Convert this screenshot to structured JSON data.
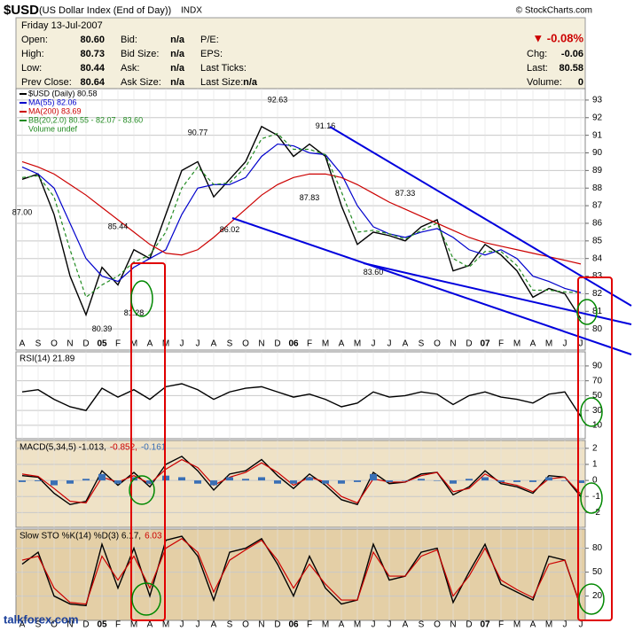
{
  "header": {
    "symbol": "$USD",
    "name": "(US Dollar Index (End of Day))",
    "exchange": "INDX",
    "source": "© StockCharts.com",
    "date": "Friday 13-Jul-2007",
    "quote": [
      [
        {
          "label": "Open:",
          "value": "80.60"
        },
        {
          "label": "Bid:",
          "value": "n/a"
        },
        {
          "label": "P/E:"
        }
      ],
      [
        {
          "label": "High:",
          "value": "80.73"
        },
        {
          "label": "Bid Size:",
          "value": "n/a"
        },
        {
          "label": "EPS:"
        }
      ],
      [
        {
          "label": "Low:",
          "value": "80.44"
        },
        {
          "label": "Ask:",
          "value": "n/a"
        },
        {
          "label": "Last Ticks:"
        }
      ],
      [
        {
          "label": "Prev Close:",
          "value": "80.64"
        },
        {
          "label": "Ask Size:",
          "value": "n/a"
        },
        {
          "label": "Last Size:",
          "value": "n/a"
        }
      ]
    ],
    "change_pct": "▼ -0.08%",
    "summary": [
      {
        "label": "Chg:",
        "value": "-0.06"
      },
      {
        "label": "Last:",
        "value": "80.58"
      },
      {
        "label": "Volume:",
        "value": "0"
      }
    ]
  },
  "watermark": "talkforex.com",
  "chart_data": [
    {
      "type": "line",
      "categories": [
        "A",
        "S",
        "O",
        "N",
        "D",
        "05",
        "F",
        "M",
        "A",
        "M",
        "J",
        "J",
        "A",
        "S",
        "O",
        "N",
        "D",
        "06",
        "F",
        "M",
        "A",
        "M",
        "J",
        "J",
        "A",
        "S",
        "O",
        "N",
        "D",
        "07",
        "F",
        "M",
        "A",
        "M",
        "J",
        "J"
      ],
      "ylim": [
        78.8,
        93.65
      ],
      "yticks": [
        80,
        81,
        82,
        83,
        84,
        85,
        86,
        87,
        88,
        89,
        90,
        91,
        92,
        93
      ],
      "grid": true,
      "legend_extra": "Volume undef",
      "series": [
        {
          "name": "$USD (Daily) 80.58",
          "color": "#000000",
          "values": [
            88.5,
            88.8,
            86.5,
            83.0,
            80.8,
            83.5,
            82.5,
            84.5,
            84.0,
            86.5,
            89.0,
            89.5,
            87.5,
            88.5,
            89.5,
            91.5,
            91.0,
            89.8,
            90.5,
            89.8,
            87.0,
            84.8,
            85.5,
            85.3,
            85.0,
            85.8,
            86.2,
            83.3,
            83.6,
            84.8,
            84.2,
            83.3,
            81.8,
            82.3,
            82.0,
            80.58
          ]
        },
        {
          "name": "MA(55) 82.06",
          "color": "#0000cc",
          "values": [
            89.2,
            88.8,
            88.0,
            86.0,
            84.0,
            83.0,
            82.7,
            83.5,
            84.0,
            84.5,
            86.5,
            88.0,
            88.2,
            88.2,
            88.6,
            89.8,
            90.5,
            90.4,
            90.0,
            89.9,
            88.8,
            87.0,
            85.8,
            85.4,
            85.2,
            85.5,
            85.7,
            85.2,
            84.5,
            84.2,
            84.5,
            84.0,
            83.0,
            82.7,
            82.3,
            82.06
          ]
        },
        {
          "name": "MA(200) 83.69",
          "color": "#cc0000",
          "values": [
            89.5,
            89.2,
            88.8,
            88.2,
            87.6,
            86.9,
            86.2,
            85.5,
            84.8,
            84.3,
            84.2,
            84.5,
            85.2,
            86.0,
            86.8,
            87.6,
            88.2,
            88.6,
            88.8,
            88.8,
            88.6,
            88.2,
            87.7,
            87.2,
            86.8,
            86.4,
            86.0,
            85.6,
            85.2,
            84.9,
            84.7,
            84.5,
            84.3,
            84.1,
            83.9,
            83.69
          ]
        },
        {
          "name": "BB(20,2.0) 80.55 - 82.07 - 83.60",
          "color": "#228b22",
          "dash": true,
          "values": [
            88.6,
            88.7,
            87.5,
            84.5,
            81.8,
            82.5,
            83.0,
            83.8,
            84.2,
            85.5,
            88.0,
            89.2,
            88.2,
            88.3,
            89.2,
            90.8,
            91.1,
            90.2,
            90.2,
            89.9,
            87.8,
            85.5,
            85.6,
            85.4,
            85.1,
            85.6,
            86.0,
            84.0,
            83.5,
            84.4,
            84.4,
            83.6,
            82.2,
            82.2,
            82.1,
            82.07
          ]
        }
      ],
      "annotations": [
        {
          "index": 0,
          "value": 87.0,
          "label": "87.00"
        },
        {
          "index": 6,
          "value": 85.44,
          "label": "85.44"
        },
        {
          "index": 5,
          "value": 80.39,
          "label": "80.39"
        },
        {
          "index": 7,
          "value": 81.28,
          "label": "81.28"
        },
        {
          "index": 11,
          "value": 90.77,
          "label": "90.77"
        },
        {
          "index": 13,
          "value": 86.02,
          "label": "86.02"
        },
        {
          "index": 16,
          "value": 92.63,
          "label": "92.63"
        },
        {
          "index": 18,
          "value": 87.83,
          "label": "87.83"
        },
        {
          "index": 19,
          "value": 91.16,
          "label": "91.16"
        },
        {
          "index": 22,
          "value": 83.6,
          "label": "83.60"
        },
        {
          "index": 24,
          "value": 87.33,
          "label": "87.33"
        }
      ]
    },
    {
      "type": "line",
      "ylim": [
        -8,
        109
      ],
      "yticks": [
        10,
        30,
        50,
        70,
        90
      ],
      "grid": true,
      "series": [
        {
          "name": "RSI(14) 21.89",
          "color": "#000000",
          "values": [
            55,
            58,
            45,
            35,
            30,
            60,
            48,
            58,
            45,
            62,
            66,
            58,
            45,
            55,
            60,
            62,
            55,
            48,
            52,
            45,
            35,
            40,
            55,
            48,
            50,
            55,
            52,
            38,
            50,
            55,
            48,
            45,
            40,
            52,
            55,
            21.89
          ]
        }
      ]
    },
    {
      "type": "line",
      "ylim": [
        -2.92,
        2.49
      ],
      "yticks": [
        -2,
        -1,
        0,
        1,
        2
      ],
      "grid": true,
      "series": [
        {
          "name": "MACD(5,34,5) -1.013,",
          "color": "#000000",
          "values": [
            0.3,
            0.2,
            -0.8,
            -1.5,
            -1.3,
            0.6,
            -0.3,
            0.5,
            -0.4,
            1.0,
            1.5,
            0.6,
            -0.6,
            0.4,
            0.6,
            1.3,
            0.3,
            -0.5,
            0.4,
            -0.3,
            -1.2,
            -1.5,
            0.5,
            -0.2,
            -0.1,
            0.4,
            0.5,
            -0.9,
            -0.4,
            0.6,
            -0.2,
            -0.4,
            -0.8,
            0.3,
            0.2,
            -1.013
          ]
        },
        {
          "name": "-0.852,",
          "color": "#cc0000",
          "values": [
            0.4,
            0.25,
            -0.5,
            -1.3,
            -1.4,
            0.2,
            -0.1,
            0.3,
            -0.2,
            0.7,
            1.3,
            0.8,
            -0.3,
            0.2,
            0.5,
            1.1,
            0.5,
            -0.3,
            0.2,
            -0.1,
            -1.0,
            -1.4,
            0.1,
            -0.1,
            -0.1,
            0.3,
            0.5,
            -0.7,
            -0.5,
            0.4,
            -0.1,
            -0.3,
            -0.7,
            0.1,
            0.2,
            -0.852
          ]
        },
        {
          "name": "-0.161",
          "color": "#3a6fb5",
          "style": "bar",
          "values": [
            -0.1,
            -0.05,
            -0.3,
            -0.2,
            0.1,
            0.4,
            -0.2,
            0.2,
            -0.2,
            0.3,
            0.2,
            -0.2,
            -0.3,
            0.2,
            0.1,
            0.2,
            -0.2,
            -0.2,
            0.2,
            -0.2,
            -0.2,
            -0.1,
            0.4,
            -0.1,
            0,
            0.1,
            0,
            -0.2,
            0.1,
            0.2,
            -0.1,
            -0.1,
            -0.1,
            0.2,
            0,
            -0.161
          ]
        }
      ]
    },
    {
      "type": "line",
      "categories": [
        "A",
        "S",
        "O",
        "N",
        "D",
        "05",
        "F",
        "M",
        "A",
        "M",
        "J",
        "J",
        "A",
        "S",
        "O",
        "N",
        "D",
        "06",
        "F",
        "M",
        "A",
        "M",
        "J",
        "J",
        "A",
        "S",
        "O",
        "N",
        "D",
        "07",
        "F",
        "M",
        "A",
        "M",
        "J",
        "J"
      ],
      "ylim": [
        -10.5,
        104
      ],
      "yticks": [
        20,
        50,
        80
      ],
      "grid": true,
      "series": [
        {
          "name": "Slow STO %K(14) %D(3) 6.17,",
          "color": "#000000",
          "values": [
            60,
            75,
            20,
            10,
            8,
            85,
            30,
            80,
            20,
            90,
            95,
            70,
            15,
            75,
            80,
            92,
            60,
            20,
            70,
            30,
            10,
            15,
            85,
            40,
            45,
            75,
            80,
            12,
            50,
            85,
            35,
            25,
            15,
            70,
            65,
            6.17
          ]
        },
        {
          "name": "6.03",
          "color": "#cc0000",
          "values": [
            65,
            70,
            30,
            12,
            10,
            70,
            40,
            70,
            30,
            80,
            92,
            75,
            25,
            65,
            78,
            90,
            65,
            30,
            60,
            35,
            15,
            15,
            75,
            45,
            45,
            70,
            78,
            20,
            45,
            80,
            40,
            28,
            18,
            60,
            65,
            6.03
          ]
        }
      ]
    }
  ]
}
